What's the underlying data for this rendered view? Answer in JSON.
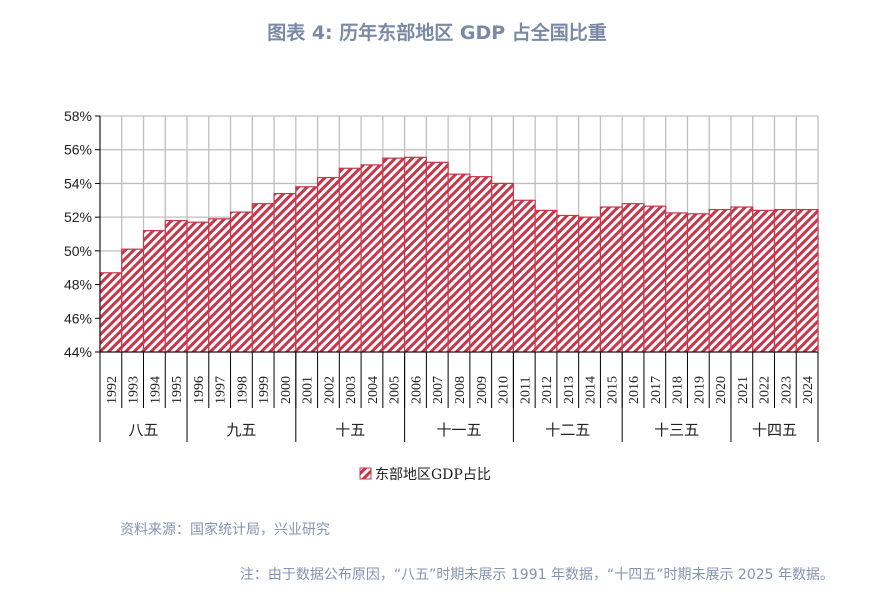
{
  "title": "图表 4:   历年东部地区 GDP 占全国比重",
  "source": "资料来源：国家统计局，兴业研究",
  "note": "注：由于数据公布原因，“八五”时期未展示 1991 年数据，“十四五”时期未展示 2025 年数据。",
  "colors": {
    "bar": "#c8364a",
    "grid": "#bfbfbf",
    "title": "#7a8aa6"
  },
  "chart_data": {
    "type": "bar",
    "title": "历年东部地区 GDP 占全国比重",
    "ylim": [
      44,
      58
    ],
    "yticks": [
      "44%",
      "46%",
      "48%",
      "50%",
      "52%",
      "54%",
      "56%",
      "58%"
    ],
    "ytick_values": [
      44,
      46,
      48,
      50,
      52,
      54,
      56,
      58
    ],
    "grid": true,
    "legend_position": "bottom",
    "categories": [
      "1992",
      "1993",
      "1994",
      "1995",
      "1996",
      "1997",
      "1998",
      "1999",
      "2000",
      "2001",
      "2002",
      "2003",
      "2004",
      "2005",
      "2006",
      "2007",
      "2008",
      "2009",
      "2010",
      "2011",
      "2012",
      "2013",
      "2014",
      "2015",
      "2016",
      "2017",
      "2018",
      "2019",
      "2020",
      "2021",
      "2022",
      "2023",
      "2024"
    ],
    "groups": [
      {
        "label": "八五",
        "count": 4
      },
      {
        "label": "九五",
        "count": 5
      },
      {
        "label": "十五",
        "count": 5
      },
      {
        "label": "十一五",
        "count": 5
      },
      {
        "label": "十二五",
        "count": 5
      },
      {
        "label": "十三五",
        "count": 5
      },
      {
        "label": "十四五",
        "count": 4
      }
    ],
    "series": [
      {
        "name": "东部地区GDP占比",
        "values": [
          48.7,
          50.1,
          51.2,
          51.8,
          51.7,
          51.9,
          52.3,
          52.8,
          53.4,
          53.8,
          54.35,
          54.9,
          55.1,
          55.5,
          55.55,
          55.25,
          54.55,
          54.4,
          54.0,
          53.0,
          52.4,
          52.1,
          52.0,
          52.6,
          52.8,
          52.65,
          52.25,
          52.2,
          52.45,
          52.6,
          52.4,
          52.45,
          52.45
        ]
      }
    ]
  }
}
